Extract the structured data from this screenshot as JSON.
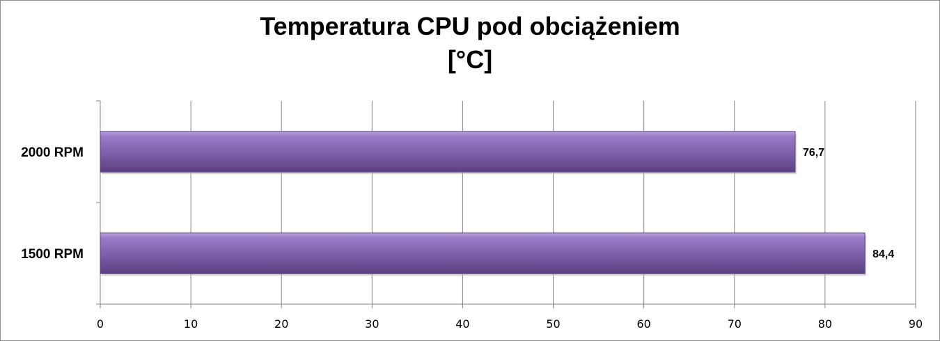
{
  "chart_data": {
    "type": "bar",
    "orientation": "horizontal",
    "title_lines": [
      "Temperatura CPU pod obciążeniem",
      "[°C]"
    ],
    "categories": [
      "2000 RPM",
      "1500 RPM"
    ],
    "values": [
      76.7,
      84.4
    ],
    "data_labels": [
      "76,7",
      "84,4"
    ],
    "xlim": [
      0,
      90
    ],
    "x_ticks": [
      0,
      10,
      20,
      30,
      40,
      50,
      60,
      70,
      80,
      90
    ],
    "grid": true,
    "legend": "none",
    "bar_color": "#7b5ea7"
  }
}
